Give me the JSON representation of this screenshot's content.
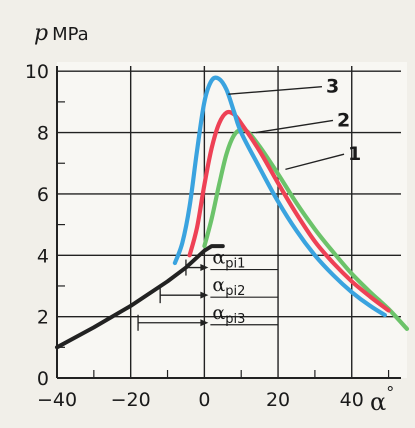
{
  "chart_data": {
    "type": "line",
    "ylabel": "p, MPa",
    "ylabel_symbol": "p",
    "ylabel_unit": "MPa",
    "xlabel": "α°",
    "xlabel_symbol": "α",
    "xlabel_degree": "°",
    "xlim": [
      -40,
      55
    ],
    "ylim": [
      0,
      10.3
    ],
    "x_ticks": [
      -40,
      -20,
      0,
      20,
      40
    ],
    "x_tick_labels": [
      "−40",
      "−20",
      "0",
      "20",
      "40"
    ],
    "y_ticks": [
      0,
      2,
      4,
      6,
      8,
      10
    ],
    "y_tick_labels": [
      "0",
      "2",
      "4",
      "6",
      "8",
      "10"
    ],
    "grid": true,
    "compression": {
      "color": "#222222",
      "x": [
        -40,
        -30,
        -20,
        -10,
        -5,
        0,
        2,
        5
      ],
      "y": [
        1.0,
        1.65,
        2.35,
        3.15,
        3.6,
        4.15,
        4.3,
        4.3
      ]
    },
    "series": [
      {
        "name": "1",
        "label": "1",
        "color": "#6cc36a",
        "x": [
          0,
          2,
          4,
          6,
          8,
          10,
          12,
          15,
          20,
          25,
          30,
          35,
          40,
          45,
          50,
          55
        ],
        "y": [
          4.3,
          5.2,
          6.3,
          7.3,
          7.9,
          8.1,
          8.0,
          7.55,
          6.65,
          5.7,
          4.85,
          4.1,
          3.4,
          2.8,
          2.25,
          1.6
        ]
      },
      {
        "name": "2",
        "label": "2",
        "color": "#ee4155",
        "x": [
          -4,
          -2,
          0,
          2,
          4,
          6,
          8,
          10,
          15,
          20,
          25,
          30,
          35,
          40,
          45,
          50
        ],
        "y": [
          4.0,
          4.9,
          6.3,
          7.5,
          8.3,
          8.65,
          8.6,
          8.3,
          7.4,
          6.35,
          5.35,
          4.45,
          3.75,
          3.15,
          2.65,
          2.2
        ]
      },
      {
        "name": "3",
        "label": "3",
        "color": "#3aa3df",
        "x": [
          -8,
          -6,
          -4,
          -2,
          0,
          2,
          4,
          6,
          8,
          10,
          15,
          20,
          25,
          30,
          35,
          40,
          45,
          49
        ],
        "y": [
          3.75,
          4.4,
          5.6,
          7.4,
          9.0,
          9.7,
          9.75,
          9.4,
          8.7,
          8.0,
          6.85,
          5.75,
          4.8,
          4.0,
          3.35,
          2.8,
          2.35,
          2.05
        ]
      }
    ],
    "labels": [
      {
        "text": "3",
        "x": 33,
        "y": 9.3,
        "series": "3",
        "leader_to": [
          6.5,
          9.25
        ]
      },
      {
        "text": "2",
        "x": 36,
        "y": 8.2,
        "series": "2",
        "leader_to": [
          14,
          8.0
        ]
      },
      {
        "text": "1",
        "x": 39,
        "y": 7.1,
        "series": "1",
        "leader_to": [
          22,
          6.8
        ]
      }
    ],
    "annotations": [
      {
        "symbol": "α",
        "subscript": "pi1",
        "y": 3.6,
        "x_start": -5,
        "text_x": 0
      },
      {
        "symbol": "α",
        "subscript": "pi2",
        "y": 2.7,
        "x_start": -12,
        "text_x": 0
      },
      {
        "symbol": "α",
        "subscript": "pi3",
        "y": 1.8,
        "x_start": -18,
        "text_x": 0
      }
    ]
  }
}
